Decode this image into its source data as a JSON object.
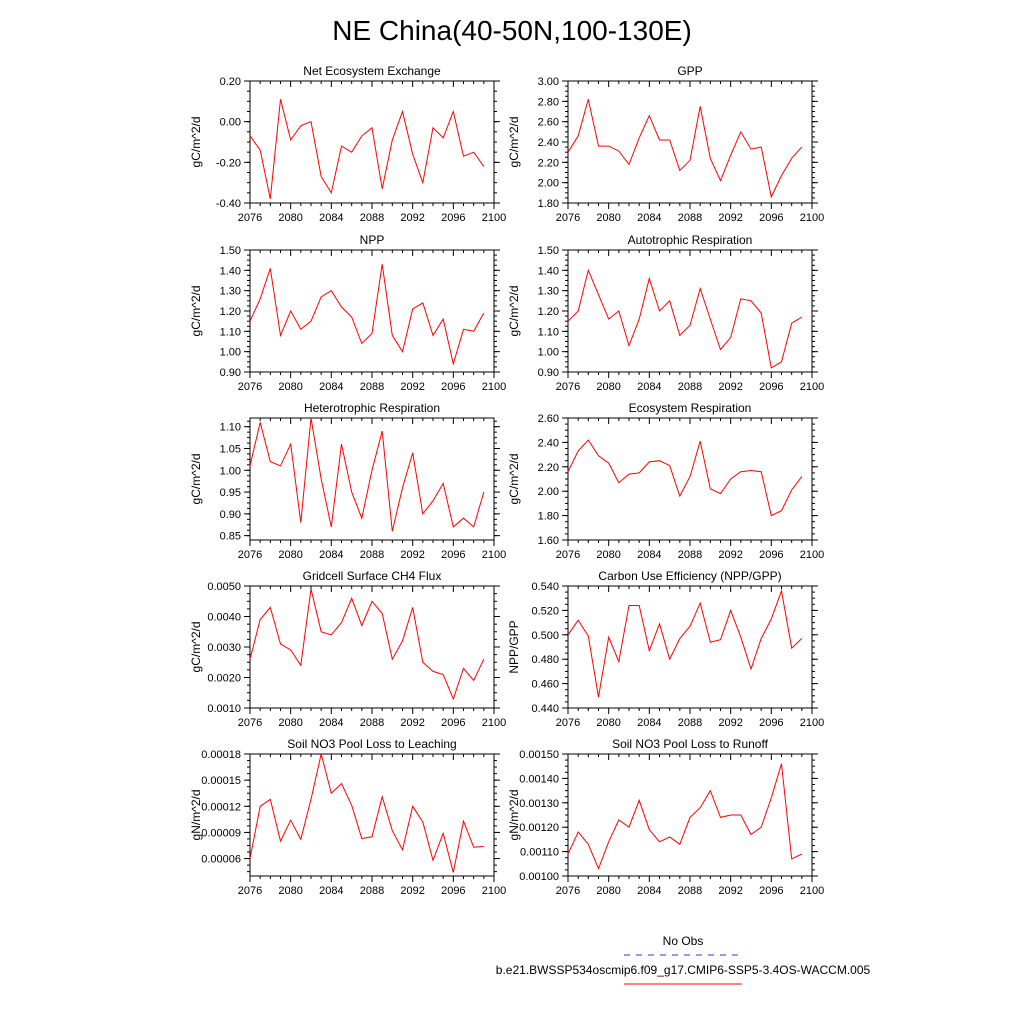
{
  "title": "NE China(40-50N,100-130E)",
  "colors": {
    "series": "#ff0000",
    "obs": "#3333cc",
    "axis": "#000000"
  },
  "legend": {
    "obs_label": "No Obs",
    "model_label": "b.e21.BWSSP534oscmip6.f09_g17.CMIP6-SSP5-3.4OS-WACCM.005"
  },
  "chart_data": [
    {
      "type": "line",
      "title": "Net Ecosystem Exchange",
      "xlabel": "",
      "ylabel": "gC/m^2/d",
      "xlim": [
        2076,
        2100
      ],
      "ylim": [
        -0.4,
        0.2
      ],
      "xticks": [
        2076,
        2080,
        2084,
        2088,
        2092,
        2096,
        2100
      ],
      "xtick_labels": [
        "2076",
        "2080",
        "2084",
        "2088",
        "2092",
        "2096",
        "2100"
      ],
      "yticks": [
        -0.4,
        -0.2,
        0.0,
        0.2
      ],
      "ytick_labels": [
        "-0.40",
        "-0.20",
        "0.00",
        "0.20"
      ],
      "x": [
        2076,
        2077,
        2078,
        2079,
        2080,
        2081,
        2082,
        2083,
        2084,
        2085,
        2086,
        2087,
        2088,
        2089,
        2090,
        2091,
        2092,
        2093,
        2094,
        2095,
        2096,
        2097,
        2098,
        2099
      ],
      "values": [
        -0.07,
        -0.14,
        -0.38,
        0.11,
        -0.09,
        -0.02,
        0.0,
        -0.27,
        -0.35,
        -0.12,
        -0.15,
        -0.07,
        -0.03,
        -0.33,
        -0.09,
        0.05,
        -0.16,
        -0.3,
        -0.03,
        -0.08,
        0.05,
        -0.17,
        -0.15,
        -0.22
      ]
    },
    {
      "type": "line",
      "title": "GPP",
      "xlabel": "",
      "ylabel": "gC/m^2/d",
      "xlim": [
        2076,
        2100
      ],
      "ylim": [
        1.8,
        3.0
      ],
      "xticks": [
        2076,
        2080,
        2084,
        2088,
        2092,
        2096,
        2100
      ],
      "xtick_labels": [
        "2076",
        "2080",
        "2084",
        "2088",
        "2092",
        "2096",
        "2100"
      ],
      "yticks": [
        1.8,
        2.0,
        2.2,
        2.4,
        2.6,
        2.8,
        3.0
      ],
      "ytick_labels": [
        "1.80",
        "2.00",
        "2.20",
        "2.40",
        "2.60",
        "2.80",
        "3.00"
      ],
      "x": [
        2076,
        2077,
        2078,
        2079,
        2080,
        2081,
        2082,
        2083,
        2084,
        2085,
        2086,
        2087,
        2088,
        2089,
        2090,
        2091,
        2092,
        2093,
        2094,
        2095,
        2096,
        2097,
        2098,
        2099
      ],
      "values": [
        2.3,
        2.46,
        2.82,
        2.36,
        2.36,
        2.31,
        2.18,
        2.44,
        2.66,
        2.42,
        2.42,
        2.12,
        2.22,
        2.75,
        2.24,
        2.02,
        2.27,
        2.5,
        2.33,
        2.35,
        1.86,
        2.07,
        2.24,
        2.35
      ]
    },
    {
      "type": "line",
      "title": "NPP",
      "xlabel": "",
      "ylabel": "gC/m^2/d",
      "xlim": [
        2076,
        2100
      ],
      "ylim": [
        0.9,
        1.5
      ],
      "xticks": [
        2076,
        2080,
        2084,
        2088,
        2092,
        2096,
        2100
      ],
      "xtick_labels": [
        "2076",
        "2080",
        "2084",
        "2088",
        "2092",
        "2096",
        "2100"
      ],
      "yticks": [
        0.9,
        1.0,
        1.1,
        1.2,
        1.3,
        1.4,
        1.5
      ],
      "ytick_labels": [
        "0.90",
        "1.00",
        "1.10",
        "1.20",
        "1.30",
        "1.40",
        "1.50"
      ],
      "x": [
        2076,
        2077,
        2078,
        2079,
        2080,
        2081,
        2082,
        2083,
        2084,
        2085,
        2086,
        2087,
        2088,
        2089,
        2090,
        2091,
        2092,
        2093,
        2094,
        2095,
        2096,
        2097,
        2098,
        2099
      ],
      "values": [
        1.15,
        1.26,
        1.41,
        1.08,
        1.2,
        1.11,
        1.15,
        1.27,
        1.3,
        1.22,
        1.17,
        1.04,
        1.09,
        1.43,
        1.08,
        1.0,
        1.21,
        1.24,
        1.08,
        1.16,
        0.94,
        1.11,
        1.1,
        1.19
      ]
    },
    {
      "type": "line",
      "title": "Autotrophic Respiration",
      "xlabel": "",
      "ylabel": "gC/m^2/d",
      "xlim": [
        2076,
        2100
      ],
      "ylim": [
        0.9,
        1.5
      ],
      "xticks": [
        2076,
        2080,
        2084,
        2088,
        2092,
        2096,
        2100
      ],
      "xtick_labels": [
        "2076",
        "2080",
        "2084",
        "2088",
        "2092",
        "2096",
        "2100"
      ],
      "yticks": [
        0.9,
        1.0,
        1.1,
        1.2,
        1.3,
        1.4,
        1.5
      ],
      "ytick_labels": [
        "0.90",
        "1.00",
        "1.10",
        "1.20",
        "1.30",
        "1.40",
        "1.50"
      ],
      "x": [
        2076,
        2077,
        2078,
        2079,
        2080,
        2081,
        2082,
        2083,
        2084,
        2085,
        2086,
        2087,
        2088,
        2089,
        2090,
        2091,
        2092,
        2093,
        2094,
        2095,
        2096,
        2097,
        2098,
        2099
      ],
      "values": [
        1.15,
        1.2,
        1.4,
        1.28,
        1.16,
        1.2,
        1.03,
        1.16,
        1.36,
        1.2,
        1.25,
        1.08,
        1.13,
        1.31,
        1.16,
        1.01,
        1.07,
        1.26,
        1.25,
        1.19,
        0.92,
        0.95,
        1.14,
        1.17
      ]
    },
    {
      "type": "line",
      "title": "Heterotrophic Respiration",
      "xlabel": "",
      "ylabel": "gC/m^2/d",
      "xlim": [
        2076,
        2100
      ],
      "ylim": [
        0.84,
        1.12
      ],
      "xticks": [
        2076,
        2080,
        2084,
        2088,
        2092,
        2096,
        2100
      ],
      "xtick_labels": [
        "2076",
        "2080",
        "2084",
        "2088",
        "2092",
        "2096",
        "2100"
      ],
      "yticks": [
        0.85,
        0.9,
        0.95,
        1.0,
        1.05,
        1.1
      ],
      "ytick_labels": [
        "0.85",
        "0.90",
        "0.95",
        "1.00",
        "1.05",
        "1.10"
      ],
      "x": [
        2076,
        2077,
        2078,
        2079,
        2080,
        2081,
        2082,
        2083,
        2084,
        2085,
        2086,
        2087,
        2088,
        2089,
        2090,
        2091,
        2092,
        2093,
        2094,
        2095,
        2096,
        2097,
        2098,
        2099
      ],
      "values": [
        1.01,
        1.11,
        1.02,
        1.01,
        1.06,
        0.88,
        1.12,
        0.98,
        0.87,
        1.06,
        0.95,
        0.89,
        1.0,
        1.09,
        0.86,
        0.96,
        1.04,
        0.9,
        0.93,
        0.97,
        0.87,
        0.89,
        0.87,
        0.95
      ]
    },
    {
      "type": "line",
      "title": "Ecosystem Respiration",
      "xlabel": "",
      "ylabel": "gC/m^2/d",
      "xlim": [
        2076,
        2100
      ],
      "ylim": [
        1.6,
        2.6
      ],
      "xticks": [
        2076,
        2080,
        2084,
        2088,
        2092,
        2096,
        2100
      ],
      "xtick_labels": [
        "2076",
        "2080",
        "2084",
        "2088",
        "2092",
        "2096",
        "2100"
      ],
      "yticks": [
        1.6,
        1.8,
        2.0,
        2.2,
        2.4,
        2.6
      ],
      "ytick_labels": [
        "1.60",
        "1.80",
        "2.00",
        "2.20",
        "2.40",
        "2.60"
      ],
      "x": [
        2076,
        2077,
        2078,
        2079,
        2080,
        2081,
        2082,
        2083,
        2084,
        2085,
        2086,
        2087,
        2088,
        2089,
        2090,
        2091,
        2092,
        2093,
        2094,
        2095,
        2096,
        2097,
        2098,
        2099
      ],
      "values": [
        2.16,
        2.33,
        2.42,
        2.29,
        2.23,
        2.07,
        2.14,
        2.15,
        2.24,
        2.25,
        2.21,
        1.96,
        2.12,
        2.41,
        2.02,
        1.98,
        2.1,
        2.16,
        2.17,
        2.16,
        1.8,
        1.84,
        2.01,
        2.12
      ]
    },
    {
      "type": "line",
      "title": "Gridcell Surface CH4 Flux",
      "xlabel": "",
      "ylabel": "gC/m^2/d",
      "xlim": [
        2076,
        2100
      ],
      "ylim": [
        0.001,
        0.005
      ],
      "xticks": [
        2076,
        2080,
        2084,
        2088,
        2092,
        2096,
        2100
      ],
      "xtick_labels": [
        "2076",
        "2080",
        "2084",
        "2088",
        "2092",
        "2096",
        "2100"
      ],
      "yticks": [
        0.001,
        0.002,
        0.003,
        0.004,
        0.005
      ],
      "ytick_labels": [
        "0.0010",
        "0.0020",
        "0.0030",
        "0.0040",
        "0.0050"
      ],
      "x": [
        2076,
        2077,
        2078,
        2079,
        2080,
        2081,
        2082,
        2083,
        2084,
        2085,
        2086,
        2087,
        2088,
        2089,
        2090,
        2091,
        2092,
        2093,
        2094,
        2095,
        2096,
        2097,
        2098,
        2099
      ],
      "values": [
        0.0026,
        0.0039,
        0.0043,
        0.0031,
        0.0029,
        0.0024,
        0.0049,
        0.0035,
        0.0034,
        0.0038,
        0.0046,
        0.0037,
        0.0045,
        0.0041,
        0.0026,
        0.0032,
        0.0043,
        0.0025,
        0.0022,
        0.0021,
        0.0013,
        0.0023,
        0.0019,
        0.0026
      ]
    },
    {
      "type": "line",
      "title": "Carbon Use Efficiency (NPP/GPP)",
      "xlabel": "",
      "ylabel": "NPP/GPP",
      "xlim": [
        2076,
        2100
      ],
      "ylim": [
        0.44,
        0.54
      ],
      "xticks": [
        2076,
        2080,
        2084,
        2088,
        2092,
        2096,
        2100
      ],
      "xtick_labels": [
        "2076",
        "2080",
        "2084",
        "2088",
        "2092",
        "2096",
        "2100"
      ],
      "yticks": [
        0.44,
        0.46,
        0.48,
        0.5,
        0.52,
        0.54
      ],
      "ytick_labels": [
        "0.440",
        "0.460",
        "0.480",
        "0.500",
        "0.520",
        "0.540"
      ],
      "x": [
        2076,
        2077,
        2078,
        2079,
        2080,
        2081,
        2082,
        2083,
        2084,
        2085,
        2086,
        2087,
        2088,
        2089,
        2090,
        2091,
        2092,
        2093,
        2094,
        2095,
        2096,
        2097,
        2098,
        2099
      ],
      "values": [
        0.5,
        0.512,
        0.499,
        0.449,
        0.498,
        0.478,
        0.524,
        0.524,
        0.487,
        0.509,
        0.48,
        0.497,
        0.507,
        0.526,
        0.494,
        0.496,
        0.52,
        0.498,
        0.472,
        0.497,
        0.513,
        0.536,
        0.489,
        0.497
      ]
    },
    {
      "type": "line",
      "title": "Soil NO3 Pool Loss to Leaching",
      "xlabel": "",
      "ylabel": "gN/m^2/d",
      "xlim": [
        2076,
        2100
      ],
      "ylim": [
        4e-05,
        0.00018
      ],
      "xticks": [
        2076,
        2080,
        2084,
        2088,
        2092,
        2096,
        2100
      ],
      "xtick_labels": [
        "2076",
        "2080",
        "2084",
        "2088",
        "2092",
        "2096",
        "2100"
      ],
      "yticks": [
        6e-05,
        9e-05,
        0.00012,
        0.00015,
        0.00018
      ],
      "ytick_labels": [
        "0.00006",
        "0.00009",
        "0.00012",
        "0.00015",
        "0.00018"
      ],
      "x": [
        2076,
        2077,
        2078,
        2079,
        2080,
        2081,
        2082,
        2083,
        2084,
        2085,
        2086,
        2087,
        2088,
        2089,
        2090,
        2091,
        2092,
        2093,
        2094,
        2095,
        2096,
        2097,
        2098,
        2099
      ],
      "values": [
        6e-05,
        0.00012,
        0.000128,
        8e-05,
        0.000104,
        8.2e-05,
        0.000128,
        0.00018,
        0.000135,
        0.000146,
        0.000121,
        8.3e-05,
        8.5e-05,
        0.000131,
        9.2e-05,
        7e-05,
        0.00012,
        0.000102,
        5.8e-05,
        8.9e-05,
        4.4e-05,
        0.000103,
        7.3e-05,
        7.4e-05
      ]
    },
    {
      "type": "line",
      "title": "Soil NO3 Pool Loss to Runoff",
      "xlabel": "",
      "ylabel": "gN/m^2/d",
      "xlim": [
        2076,
        2100
      ],
      "ylim": [
        0.001,
        0.0015
      ],
      "xticks": [
        2076,
        2080,
        2084,
        2088,
        2092,
        2096,
        2100
      ],
      "xtick_labels": [
        "2076",
        "2080",
        "2084",
        "2088",
        "2092",
        "2096",
        "2100"
      ],
      "yticks": [
        0.001,
        0.0011,
        0.0012,
        0.0013,
        0.0014,
        0.0015
      ],
      "ytick_labels": [
        "0.00100",
        "0.00110",
        "0.00120",
        "0.00130",
        "0.00140",
        "0.00150"
      ],
      "x": [
        2076,
        2077,
        2078,
        2079,
        2080,
        2081,
        2082,
        2083,
        2084,
        2085,
        2086,
        2087,
        2088,
        2089,
        2090,
        2091,
        2092,
        2093,
        2094,
        2095,
        2096,
        2097,
        2098,
        2099
      ],
      "values": [
        0.00109,
        0.00118,
        0.00113,
        0.00103,
        0.00114,
        0.00123,
        0.0012,
        0.00131,
        0.00119,
        0.00114,
        0.00116,
        0.00113,
        0.00124,
        0.00128,
        0.00135,
        0.00124,
        0.00125,
        0.00125,
        0.00117,
        0.0012,
        0.00132,
        0.00146,
        0.00107,
        0.00109
      ]
    }
  ]
}
